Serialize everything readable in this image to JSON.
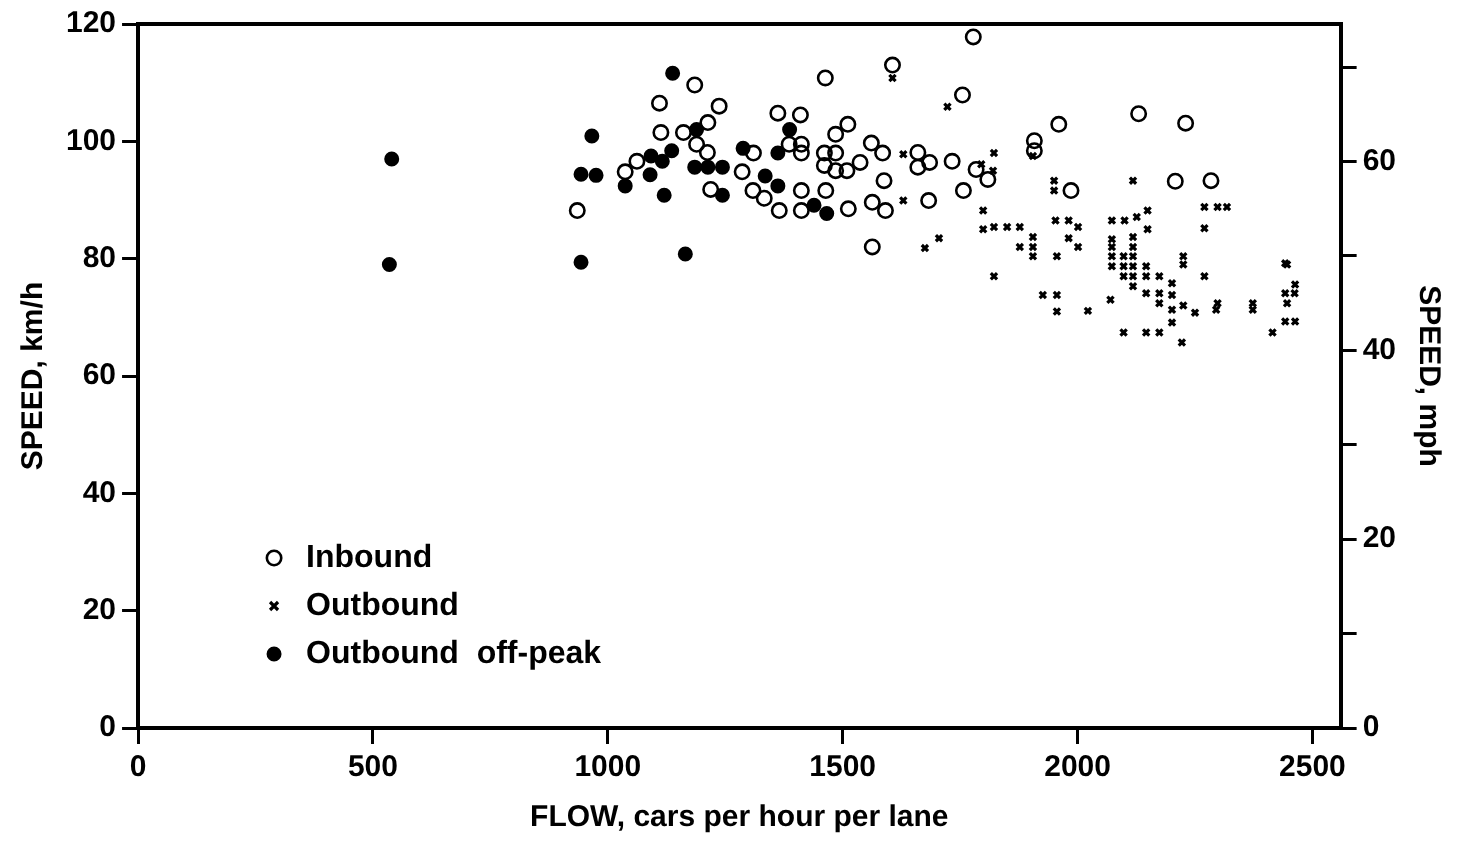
{
  "chart_data": {
    "type": "scatter",
    "xlabel": "FLOW, cars per hour per lane",
    "ylabel": "SPEED, km/h",
    "y2label": "SPEED, mph",
    "xlim": [
      0,
      2560
    ],
    "xticks": [
      0,
      500,
      1000,
      1500,
      2000,
      2500
    ],
    "ylim": [
      0,
      120
    ],
    "yticks": [
      0,
      20,
      40,
      60,
      80,
      100,
      120
    ],
    "y2lim": [
      0,
      74.56
    ],
    "y2ticks": [
      0,
      {
        "value": 10,
        "label": null
      },
      20,
      {
        "value": 30,
        "label": null
      },
      40,
      {
        "value": 50,
        "label": null
      },
      60,
      {
        "value": 70,
        "label": null
      }
    ],
    "grid": false,
    "legend": "bottom left",
    "series": [
      {
        "name": "Inbound",
        "color": "#000000",
        "marker": "circle",
        "x": [
          935,
          1037,
          1062,
          1110,
          1185,
          1237,
          1113,
          1161,
          1213,
          1189,
          1212,
          1219,
          1286,
          1310,
          1309,
          1333,
          1365,
          1362,
          1410,
          1386,
          1412,
          1412,
          1412,
          1412,
          1464,
          1463,
          1485,
          1511,
          1461,
          1485,
          1461,
          1485,
          1509,
          1537,
          1561,
          1585,
          1512,
          1563,
          1606,
          1588,
          1563,
          1591,
          1778,
          1755,
          1660,
          1660,
          1685,
          1733,
          1784,
          1809,
          1757,
          1683,
          1908,
          1908,
          1960,
          1986,
          2130,
          2230,
          2208,
          2284
        ],
        "values": [
          88.2,
          94.8,
          96.6,
          106.5,
          109.6,
          106,
          101.5,
          101.5,
          103.2,
          99.5,
          98.1,
          91.8,
          94.8,
          98,
          91.6,
          90.3,
          88.2,
          104.8,
          104.5,
          99.5,
          99.5,
          98,
          91.6,
          88.2,
          91.6,
          110.8,
          101.2,
          102.9,
          98,
          98,
          95.9,
          95,
          95,
          96.4,
          99.7,
          98,
          88.5,
          82,
          113,
          93.3,
          89.6,
          88.2,
          117.8,
          107.9,
          98.1,
          95.6,
          96.4,
          96.6,
          95.2,
          93.5,
          91.6,
          89.9,
          100.1,
          98.4,
          102.9,
          91.6,
          104.7,
          103.1,
          93.2,
          93.3
        ]
      },
      {
        "name": "Outbound",
        "color": "#000000",
        "marker": "cross",
        "x": [
          1606,
          1723,
          1629,
          1629,
          1822,
          1795,
          1820,
          1799,
          1799,
          1822,
          1850,
          1877,
          1877,
          1905,
          1905,
          1905,
          1675,
          1705,
          1822,
          1905,
          1950,
          1950,
          1953,
          1981,
          2001,
          1981,
          2001,
          1956,
          1926,
          1956,
          1956,
          2073,
          2073,
          2100,
          2126,
          2149,
          2149,
          2118,
          2073,
          2073,
          2073,
          2098,
          2098,
          2098,
          2118,
          2118,
          2118,
          2118,
          2118,
          2118,
          2146,
          2146,
          2174,
          2146,
          2174,
          2174,
          2225,
          2225,
          2201,
          2201,
          2225,
          2270,
          2298,
          2318,
          2270,
          2270,
          2298,
          2373,
          2442,
          2442,
          2462,
          2022,
          2098,
          2146,
          2174,
          2201,
          2222,
          2250,
          2295,
          2373,
          2415,
          2442,
          2463,
          2446,
          2463,
          2446,
          2201,
          2070
        ],
        "values": [
          110.8,
          105.9,
          97.8,
          89.9,
          98,
          96.1,
          95,
          88.2,
          85,
          85.4,
          85.4,
          85.4,
          82,
          83.7,
          82,
          80.4,
          81.8,
          83.5,
          77,
          97.5,
          93.3,
          91.6,
          86.5,
          86.5,
          85.4,
          83.5,
          82,
          80.4,
          73.8,
          73.8,
          71,
          86.5,
          83.3,
          86.5,
          87.1,
          88.2,
          85,
          93.3,
          82,
          80.4,
          78.7,
          80.4,
          78.7,
          77,
          83.7,
          82,
          80.4,
          78.7,
          77,
          75.3,
          78.7,
          77,
          77,
          74.1,
          74.1,
          72.4,
          80.4,
          79,
          75.8,
          73.8,
          72,
          88.8,
          88.8,
          88.8,
          85.2,
          77,
          72.4,
          72.4,
          79.2,
          74.1,
          74.1,
          71.1,
          67.4,
          67.4,
          67.4,
          69.1,
          65.7,
          70.8,
          71.3,
          71.3,
          67.4,
          69.3,
          69.3,
          72.4,
          75.6,
          79,
          71.3,
          73
        ]
      },
      {
        "name": "Outbound  off-peak",
        "color": "#000000",
        "marker": "circle",
        "x": [
          540,
          535,
          1138,
          966,
          943,
          975,
          1037,
          1090,
          1120,
          1092,
          1116,
          1136,
          1189,
          1185,
          1213,
          1244,
          1244,
          943,
          1165,
          1288,
          1335,
          1362,
          1362,
          1387,
          1439,
          1466
        ],
        "values": [
          97,
          79,
          111.6,
          100.9,
          94.4,
          94.2,
          92.4,
          94.3,
          90.8,
          97.5,
          96.6,
          98.4,
          102,
          95.6,
          95.6,
          95.6,
          90.8,
          79.4,
          80.8,
          98.8,
          94.1,
          92.4,
          98,
          102,
          89.1,
          87.7
        ]
      }
    ]
  }
}
